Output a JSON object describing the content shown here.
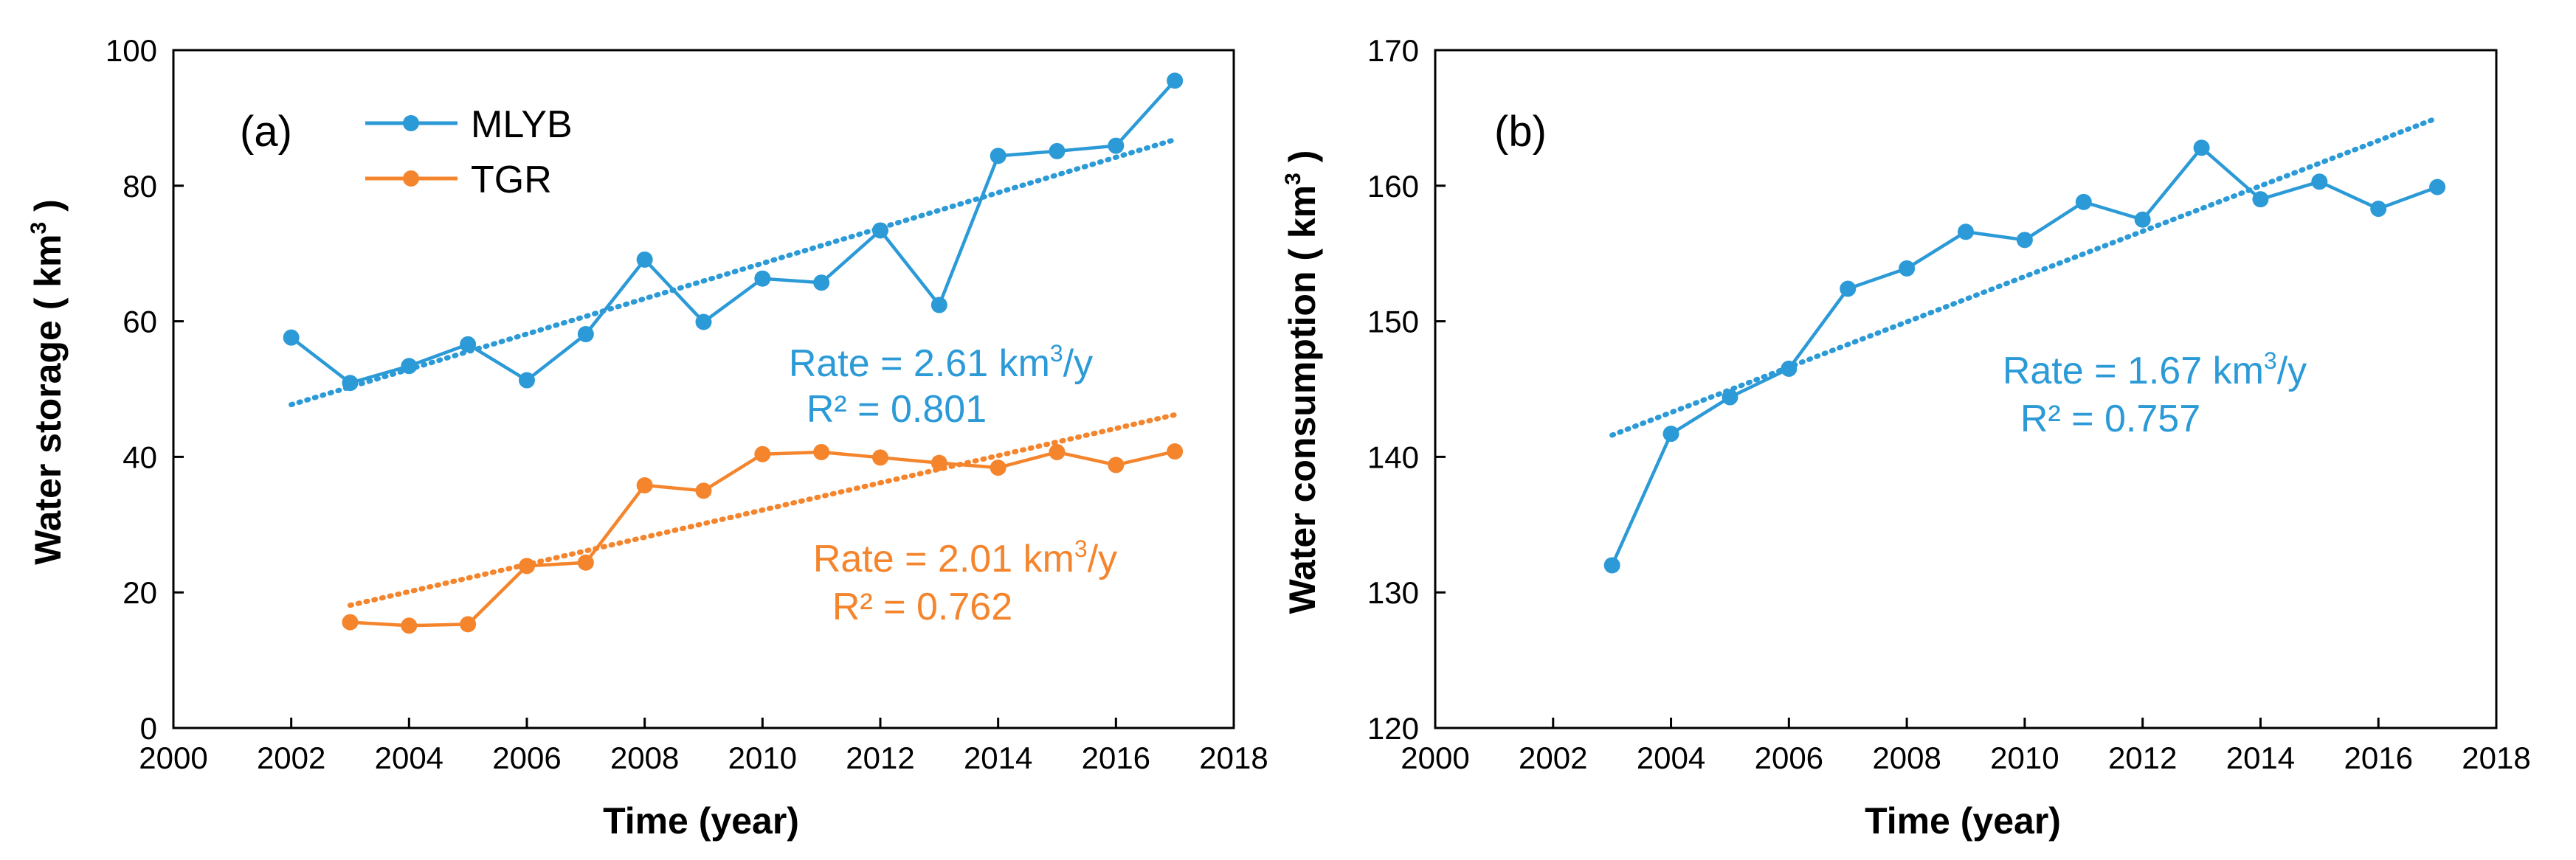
{
  "chart_data": [
    {
      "type": "line",
      "panel_label": "(a)",
      "xlabel": "Time (year)",
      "ylabel": "Water storage ( km",
      "ylabel_sup": "3",
      "ylabel_end": " )",
      "xlim": [
        2000,
        2018
      ],
      "ylim": [
        0,
        100
      ],
      "xticks": [
        2000,
        2002,
        2004,
        2006,
        2008,
        2010,
        2012,
        2014,
        2016,
        2018
      ],
      "yticks": [
        0,
        20,
        40,
        60,
        80,
        100
      ],
      "legend_position": "top-left",
      "series": [
        {
          "name": "MLYB",
          "color": "#2b9ad6",
          "x": [
            2002,
            2003,
            2004,
            2005,
            2006,
            2007,
            2008,
            2009,
            2010,
            2011,
            2012,
            2013,
            2014,
            2015,
            2016,
            2017
          ],
          "values": [
            57.6,
            50.9,
            53.4,
            56.6,
            51.3,
            58.1,
            69.1,
            59.9,
            66.3,
            65.7,
            73.4,
            62.4,
            84.4,
            85.1,
            85.9,
            95.5
          ],
          "trend": {
            "x": [
              2002,
              2017
            ],
            "y": [
              47.7,
              86.8
            ]
          }
        },
        {
          "name": "TGR",
          "color": "#f4852d",
          "x": [
            2003,
            2004,
            2005,
            2006,
            2007,
            2008,
            2009,
            2010,
            2011,
            2012,
            2013,
            2014,
            2015,
            2016,
            2017
          ],
          "values": [
            15.6,
            15.1,
            15.3,
            23.9,
            24.4,
            35.8,
            35.0,
            40.4,
            40.7,
            39.9,
            39.1,
            38.4,
            40.7,
            38.8,
            40.8
          ],
          "trend": {
            "x": [
              2003,
              2017
            ],
            "y": [
              18.1,
              46.2
            ]
          }
        }
      ],
      "annotations": [
        {
          "rate_prefix": "Rate = 2.61 km",
          "rate_sup": "3",
          "rate_suffix": "/y",
          "r2": "R² = 0.801",
          "color": "#2b9ad6"
        },
        {
          "rate_prefix": "Rate = 2.01 km",
          "rate_sup": "3",
          "rate_suffix": "/y",
          "r2": "R² = 0.762",
          "color": "#f4852d"
        }
      ]
    },
    {
      "type": "line",
      "panel_label": "(b)",
      "xlabel": "Time (year)",
      "ylabel": "Water consumption ( km",
      "ylabel_sup": "3",
      "ylabel_end": " )",
      "xlim": [
        2000,
        2018
      ],
      "ylim": [
        120,
        170
      ],
      "xticks": [
        2000,
        2002,
        2004,
        2006,
        2008,
        2010,
        2012,
        2014,
        2016,
        2018
      ],
      "yticks": [
        120,
        130,
        140,
        150,
        160,
        170
      ],
      "series": [
        {
          "name": "Water consumption",
          "color": "#2b9ad6",
          "x": [
            2003,
            2004,
            2005,
            2006,
            2007,
            2008,
            2009,
            2010,
            2011,
            2012,
            2013,
            2014,
            2015,
            2016,
            2017
          ],
          "values": [
            132.0,
            141.7,
            144.4,
            146.5,
            152.4,
            153.9,
            156.6,
            156.0,
            158.8,
            157.5,
            162.8,
            159.0,
            160.3,
            158.3,
            159.9
          ],
          "trend": {
            "x": [
              2003,
              2017
            ],
            "y": [
              141.6,
              165.0
            ]
          }
        }
      ],
      "annotations": [
        {
          "rate_prefix": "Rate = 1.67 km",
          "rate_sup": "3",
          "rate_suffix": "/y",
          "r2": "R² = 0.757",
          "color": "#2b9ad6"
        }
      ]
    }
  ]
}
